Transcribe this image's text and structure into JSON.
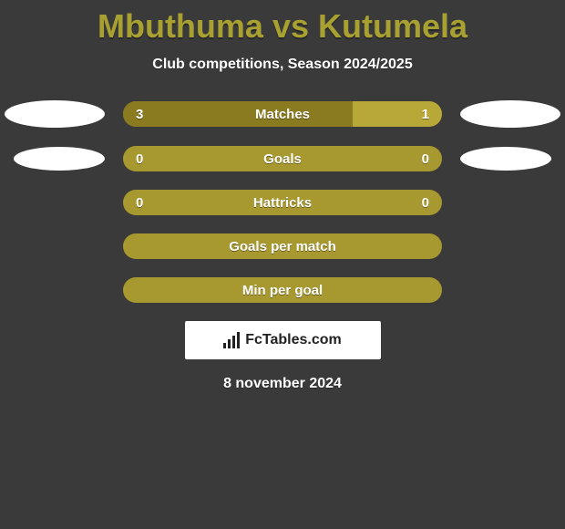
{
  "title": "Mbuthuma vs Kutumela",
  "subtitle": "Club competitions, Season 2024/2025",
  "rows": [
    {
      "label": "Matches",
      "left": "3",
      "right": "1",
      "show_left_val": true,
      "show_right_val": true,
      "left_fill_pct": 72,
      "right_fill_pct": 28,
      "marker_left": true,
      "marker_right": true,
      "marker_size": "large"
    },
    {
      "label": "Goals",
      "left": "0",
      "right": "0",
      "show_left_val": true,
      "show_right_val": true,
      "left_fill_pct": 0,
      "right_fill_pct": 0,
      "marker_left": true,
      "marker_right": true,
      "marker_size": "small"
    },
    {
      "label": "Hattricks",
      "left": "0",
      "right": "0",
      "show_left_val": true,
      "show_right_val": true,
      "left_fill_pct": 0,
      "right_fill_pct": 0,
      "marker_left": false,
      "marker_right": false,
      "marker_size": "small"
    },
    {
      "label": "Goals per match",
      "left": "",
      "right": "",
      "show_left_val": false,
      "show_right_val": false,
      "left_fill_pct": 0,
      "right_fill_pct": 0,
      "marker_left": false,
      "marker_right": false,
      "marker_size": "small"
    },
    {
      "label": "Min per goal",
      "left": "",
      "right": "",
      "show_left_val": false,
      "show_right_val": false,
      "left_fill_pct": 0,
      "right_fill_pct": 0,
      "marker_left": false,
      "marker_right": false,
      "marker_size": "small"
    }
  ],
  "watermark": "FcTables.com",
  "date": "8 november 2024",
  "colors": {
    "bg": "#3a3a3a",
    "accent": "#a8a030",
    "bar_base": "#a89830",
    "bar_left": "#8a7a20",
    "bar_right": "#b8a838",
    "text": "#ffffff"
  }
}
